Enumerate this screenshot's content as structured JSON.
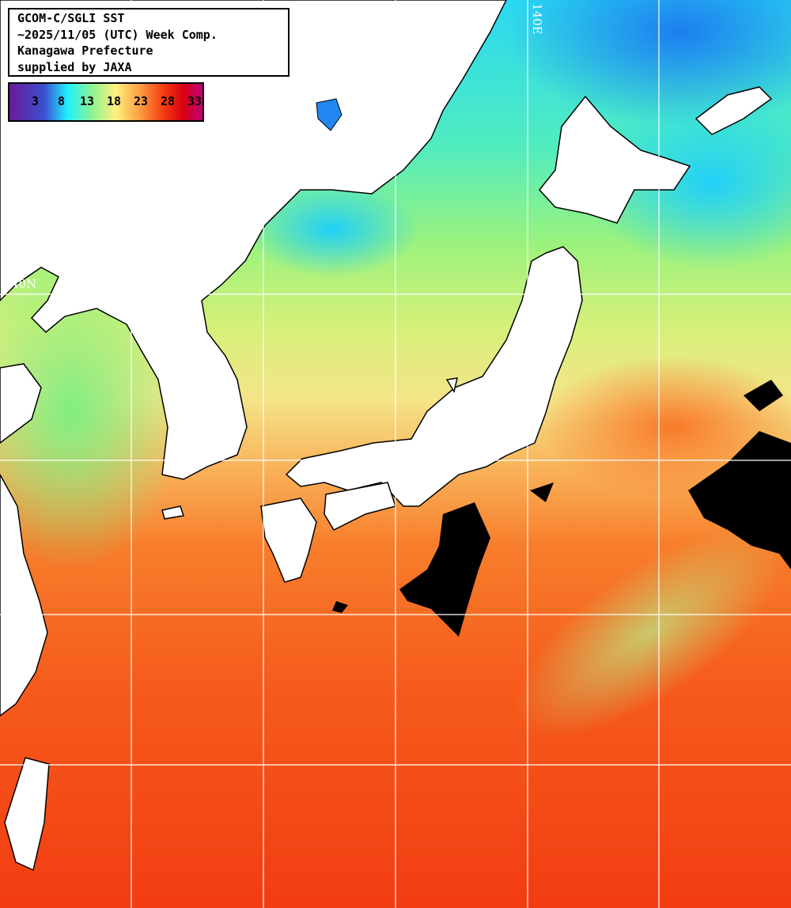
{
  "title": {
    "lines": [
      "GCOM-C/SGLI SST",
      "~2025/11/05 (UTC) Week Comp.",
      "Kanagawa Prefecture",
      "supplied by JAXA"
    ]
  },
  "legend": {
    "ticks": [
      "3",
      "8",
      "13",
      "18",
      "23",
      "28",
      "33"
    ],
    "colors": [
      "#6a1a9a",
      "#3a50d0",
      "#20f0ff",
      "#90f290",
      "#fff080",
      "#fb9a40",
      "#f43a10",
      "#d80010",
      "#c0007a"
    ]
  },
  "grid": {
    "lon_label": "140E",
    "lat_label": "40N"
  },
  "colors": {
    "land": "#ffffff",
    "cloud": "#000000",
    "grid": "#ffffff"
  }
}
